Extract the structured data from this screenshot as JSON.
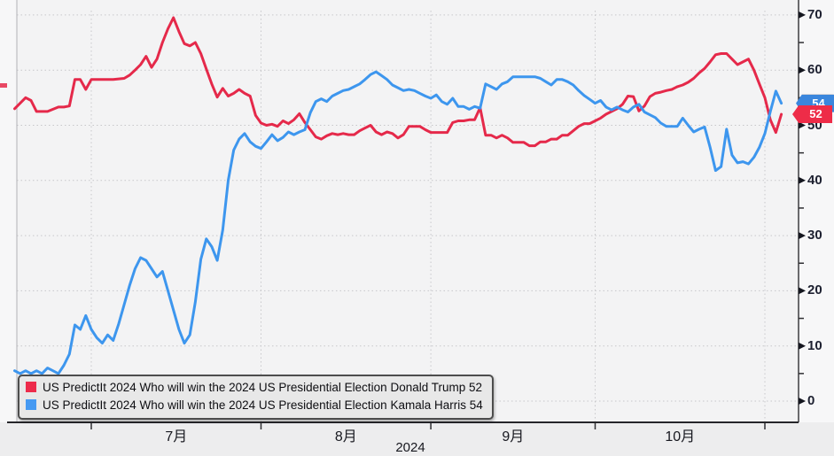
{
  "chart_data": {
    "type": "line",
    "source": "US PredictIt 2024",
    "grid": true,
    "legend_position": "bottom-left",
    "x_axis": {
      "year_label": "2024",
      "labels": [
        "7月",
        "8月",
        "9月",
        "10月"
      ],
      "month_starts": [
        "07-01",
        "08-01",
        "09-01",
        "10-01",
        "11-01"
      ],
      "range": [
        "06-17",
        "11-04"
      ]
    },
    "y_axis": {
      "side": "right",
      "range": [
        0,
        70
      ],
      "ticks": [
        0,
        10,
        20,
        30,
        40,
        50,
        60,
        70
      ],
      "tick_labels": [
        "0",
        "10",
        "20",
        "30",
        "40",
        "50",
        "60",
        "70"
      ],
      "minor_ticks": [
        5,
        15,
        25,
        35,
        45,
        55,
        65
      ]
    },
    "badges": [
      {
        "series": "Kamala Harris",
        "value": "54",
        "color": "#3a86dd"
      },
      {
        "series": "Donald Trump",
        "value": "52",
        "color": "#ee2c48"
      }
    ],
    "legend": {
      "entries": [
        {
          "label": "US PredictIt 2024 Who will win the 2024 US Presidential Election Donald Trump  52",
          "color": "#ed2b4b"
        },
        {
          "label": "US PredictIt 2024 Who will win the 2024 US Presidential Election Kamala Harris 54",
          "color": "#4599f2"
        }
      ]
    },
    "series": [
      {
        "name": "US PredictIt 2024 Who will win the 2024 US Presidential Election Donald Trump",
        "last_value": 52,
        "color": "#e5294a",
        "points": [
          [
            "06-17",
            53
          ],
          [
            "06-18",
            54
          ],
          [
            "06-19",
            55
          ],
          [
            "06-20",
            54.5
          ],
          [
            "06-21",
            52.5
          ],
          [
            "06-23",
            52.5
          ],
          [
            "06-25",
            53.3
          ],
          [
            "06-26",
            53.3
          ],
          [
            "06-27",
            53.5
          ],
          [
            "06-28",
            58.3
          ],
          [
            "06-29",
            58.3
          ],
          [
            "06-30",
            56.5
          ],
          [
            "07-01",
            58.3
          ],
          [
            "07-03",
            58.3
          ],
          [
            "07-05",
            58.3
          ],
          [
            "07-07",
            58.5
          ],
          [
            "07-08",
            59.1
          ],
          [
            "07-09",
            60
          ],
          [
            "07-10",
            61
          ],
          [
            "07-11",
            62.5
          ],
          [
            "07-12",
            60.5
          ],
          [
            "07-13",
            62
          ],
          [
            "07-14",
            65
          ],
          [
            "07-15",
            67.5
          ],
          [
            "07-16",
            69.5
          ],
          [
            "07-17",
            67
          ],
          [
            "07-18",
            64.8
          ],
          [
            "07-19",
            64.4
          ],
          [
            "07-20",
            65
          ],
          [
            "07-21",
            63
          ],
          [
            "07-22",
            60.2
          ],
          [
            "07-23",
            57.5
          ],
          [
            "07-24",
            55.1
          ],
          [
            "07-25",
            56.7
          ],
          [
            "07-26",
            55.3
          ],
          [
            "07-27",
            55.8
          ],
          [
            "07-28",
            56.5
          ],
          [
            "07-29",
            55.8
          ],
          [
            "07-30",
            55.3
          ],
          [
            "07-31",
            51.8
          ],
          [
            "08-01",
            50.4
          ],
          [
            "08-02",
            50
          ],
          [
            "08-03",
            50.2
          ],
          [
            "08-04",
            49.8
          ],
          [
            "08-05",
            50.8
          ],
          [
            "08-06",
            50.3
          ],
          [
            "08-07",
            51
          ],
          [
            "08-08",
            52.1
          ],
          [
            "08-09",
            50.5
          ],
          [
            "08-10",
            49.2
          ],
          [
            "08-11",
            47.9
          ],
          [
            "08-12",
            47.5
          ],
          [
            "08-13",
            48.1
          ],
          [
            "08-14",
            48.5
          ],
          [
            "08-15",
            48.3
          ],
          [
            "08-16",
            48.5
          ],
          [
            "08-17",
            48.3
          ],
          [
            "08-18",
            48.3
          ],
          [
            "08-19",
            49
          ],
          [
            "08-20",
            49.5
          ],
          [
            "08-21",
            50
          ],
          [
            "08-22",
            48.8
          ],
          [
            "08-23",
            48.3
          ],
          [
            "08-24",
            48.8
          ],
          [
            "08-25",
            48.5
          ],
          [
            "08-26",
            47.7
          ],
          [
            "08-27",
            48.3
          ],
          [
            "08-28",
            49.8
          ],
          [
            "08-29",
            49.8
          ],
          [
            "08-30",
            49.8
          ],
          [
            "08-31",
            49.2
          ],
          [
            "09-01",
            48.7
          ],
          [
            "09-02",
            48.7
          ],
          [
            "09-03",
            48.7
          ],
          [
            "09-04",
            48.7
          ],
          [
            "09-05",
            50.5
          ],
          [
            "09-06",
            50.8
          ],
          [
            "09-07",
            50.8
          ],
          [
            "09-08",
            51
          ],
          [
            "09-09",
            51
          ],
          [
            "09-10",
            53.2
          ],
          [
            "09-11",
            48.2
          ],
          [
            "09-12",
            48.2
          ],
          [
            "09-13",
            47.7
          ],
          [
            "09-14",
            48.2
          ],
          [
            "09-15",
            47.7
          ],
          [
            "09-16",
            46.9
          ],
          [
            "09-17",
            46.9
          ],
          [
            "09-18",
            46.9
          ],
          [
            "09-19",
            46.3
          ],
          [
            "09-20",
            46.3
          ],
          [
            "09-21",
            47
          ],
          [
            "09-22",
            47
          ],
          [
            "09-23",
            47.5
          ],
          [
            "09-24",
            47.5
          ],
          [
            "09-25",
            48.2
          ],
          [
            "09-26",
            48.2
          ],
          [
            "09-27",
            49
          ],
          [
            "09-28",
            49.8
          ],
          [
            "09-29",
            50.3
          ],
          [
            "09-30",
            50.3
          ],
          [
            "10-01",
            50.8
          ],
          [
            "10-02",
            51.3
          ],
          [
            "10-03",
            52
          ],
          [
            "10-04",
            52.5
          ],
          [
            "10-05",
            53
          ],
          [
            "10-06",
            53.8
          ],
          [
            "10-07",
            55.3
          ],
          [
            "10-08",
            55.2
          ],
          [
            "10-09",
            52.6
          ],
          [
            "10-10",
            53.5
          ],
          [
            "10-11",
            55.2
          ],
          [
            "10-12",
            55.8
          ],
          [
            "10-13",
            56
          ],
          [
            "10-14",
            56.3
          ],
          [
            "10-15",
            56.5
          ],
          [
            "10-16",
            57
          ],
          [
            "10-17",
            57.3
          ],
          [
            "10-18",
            57.8
          ],
          [
            "10-19",
            58.5
          ],
          [
            "10-20",
            59.5
          ],
          [
            "10-21",
            60.3
          ],
          [
            "10-22",
            61.5
          ],
          [
            "10-23",
            62.8
          ],
          [
            "10-24",
            63
          ],
          [
            "10-25",
            63
          ],
          [
            "10-26",
            62
          ],
          [
            "10-27",
            61
          ],
          [
            "10-28",
            61.5
          ],
          [
            "10-29",
            62
          ],
          [
            "10-30",
            60
          ],
          [
            "10-31",
            57.5
          ],
          [
            "11-01",
            55
          ],
          [
            "11-02",
            51
          ],
          [
            "11-03",
            48.7
          ],
          [
            "11-04",
            52
          ]
        ]
      },
      {
        "name": "US PredictIt 2024 Who will win the 2024 US Presidential Election Kamala Harris",
        "last_value": 54,
        "color": "#3d96ee",
        "points": [
          [
            "06-17",
            5.5
          ],
          [
            "06-18",
            5
          ],
          [
            "06-19",
            5.5
          ],
          [
            "06-20",
            5
          ],
          [
            "06-21",
            5.5
          ],
          [
            "06-22",
            5
          ],
          [
            "06-23",
            6
          ],
          [
            "06-24",
            5.5
          ],
          [
            "06-25",
            5
          ],
          [
            "06-26",
            6.5
          ],
          [
            "06-27",
            8.5
          ],
          [
            "06-28",
            13.8
          ],
          [
            "06-29",
            13
          ],
          [
            "06-30",
            15.5
          ],
          [
            "07-01",
            13
          ],
          [
            "07-02",
            11.5
          ],
          [
            "07-03",
            10.5
          ],
          [
            "07-04",
            12
          ],
          [
            "07-05",
            11
          ],
          [
            "07-06",
            14
          ],
          [
            "07-07",
            17.5
          ],
          [
            "07-08",
            21
          ],
          [
            "07-09",
            24
          ],
          [
            "07-10",
            26
          ],
          [
            "07-11",
            25.5
          ],
          [
            "07-12",
            24
          ],
          [
            "07-13",
            22.5
          ],
          [
            "07-14",
            23.5
          ],
          [
            "07-15",
            20
          ],
          [
            "07-16",
            16.5
          ],
          [
            "07-17",
            13
          ],
          [
            "07-18",
            10.5
          ],
          [
            "07-19",
            12
          ],
          [
            "07-20",
            18
          ],
          [
            "07-21",
            25.7
          ],
          [
            "07-22",
            29.4
          ],
          [
            "07-23",
            28
          ],
          [
            "07-24",
            25.5
          ],
          [
            "07-25",
            31
          ],
          [
            "07-26",
            40
          ],
          [
            "07-27",
            45.5
          ],
          [
            "07-28",
            47.5
          ],
          [
            "07-29",
            48.5
          ],
          [
            "07-30",
            47
          ],
          [
            "07-31",
            46.2
          ],
          [
            "08-01",
            45.8
          ],
          [
            "08-02",
            47
          ],
          [
            "08-03",
            48.3
          ],
          [
            "08-04",
            47.2
          ],
          [
            "08-05",
            47.8
          ],
          [
            "08-06",
            48.8
          ],
          [
            "08-07",
            48.3
          ],
          [
            "08-08",
            48.8
          ],
          [
            "08-09",
            49.2
          ],
          [
            "08-10",
            52.3
          ],
          [
            "08-11",
            54.3
          ],
          [
            "08-12",
            54.8
          ],
          [
            "08-13",
            54.3
          ],
          [
            "08-14",
            55.3
          ],
          [
            "08-15",
            55.8
          ],
          [
            "08-16",
            56.3
          ],
          [
            "08-17",
            56.5
          ],
          [
            "08-18",
            57
          ],
          [
            "08-19",
            57.5
          ],
          [
            "08-20",
            58.3
          ],
          [
            "08-21",
            59.2
          ],
          [
            "08-22",
            59.7
          ],
          [
            "08-23",
            59
          ],
          [
            "08-24",
            58.3
          ],
          [
            "08-25",
            57.3
          ],
          [
            "08-26",
            56.8
          ],
          [
            "08-27",
            56.3
          ],
          [
            "08-28",
            56.5
          ],
          [
            "08-29",
            56.3
          ],
          [
            "08-30",
            55.8
          ],
          [
            "08-31",
            55.3
          ],
          [
            "09-01",
            54.9
          ],
          [
            "09-02",
            55.5
          ],
          [
            "09-03",
            54.3
          ],
          [
            "09-04",
            53.8
          ],
          [
            "09-05",
            54.9
          ],
          [
            "09-06",
            53.4
          ],
          [
            "09-07",
            53.4
          ],
          [
            "09-08",
            52.9
          ],
          [
            "09-09",
            53.4
          ],
          [
            "09-10",
            53.1
          ],
          [
            "09-11",
            57.5
          ],
          [
            "09-12",
            57
          ],
          [
            "09-13",
            56.5
          ],
          [
            "09-14",
            57.5
          ],
          [
            "09-15",
            57.9
          ],
          [
            "09-16",
            58.8
          ],
          [
            "09-17",
            58.8
          ],
          [
            "09-18",
            58.8
          ],
          [
            "09-19",
            58.8
          ],
          [
            "09-20",
            58.8
          ],
          [
            "09-21",
            58.5
          ],
          [
            "09-22",
            57.9
          ],
          [
            "09-23",
            57.3
          ],
          [
            "09-24",
            58.3
          ],
          [
            "09-25",
            58.3
          ],
          [
            "09-26",
            57.9
          ],
          [
            "09-27",
            57.3
          ],
          [
            "09-28",
            56.3
          ],
          [
            "09-29",
            55.4
          ],
          [
            "09-30",
            54.7
          ],
          [
            "10-01",
            54
          ],
          [
            "10-02",
            54.5
          ],
          [
            "10-03",
            53.3
          ],
          [
            "10-04",
            52.8
          ],
          [
            "10-05",
            53.3
          ],
          [
            "10-06",
            52.8
          ],
          [
            "10-07",
            52.4
          ],
          [
            "10-08",
            53.3
          ],
          [
            "10-09",
            53.8
          ],
          [
            "10-10",
            52.4
          ],
          [
            "10-11",
            51.9
          ],
          [
            "10-12",
            51.4
          ],
          [
            "10-13",
            50.4
          ],
          [
            "10-14",
            49.8
          ],
          [
            "10-15",
            49.8
          ],
          [
            "10-16",
            49.8
          ],
          [
            "10-17",
            51.3
          ],
          [
            "10-18",
            50
          ],
          [
            "10-19",
            48.8
          ],
          [
            "10-20",
            49.3
          ],
          [
            "10-21",
            49.7
          ],
          [
            "10-22",
            46
          ],
          [
            "10-23",
            41.8
          ],
          [
            "10-24",
            42.5
          ],
          [
            "10-25",
            49.3
          ],
          [
            "10-26",
            44.6
          ],
          [
            "10-27",
            43.2
          ],
          [
            "10-28",
            43.4
          ],
          [
            "10-29",
            43
          ],
          [
            "10-30",
            44.2
          ],
          [
            "10-31",
            46
          ],
          [
            "11-01",
            48.5
          ],
          [
            "11-02",
            52.5
          ],
          [
            "11-03",
            56.2
          ],
          [
            "11-04",
            54
          ]
        ]
      }
    ]
  }
}
